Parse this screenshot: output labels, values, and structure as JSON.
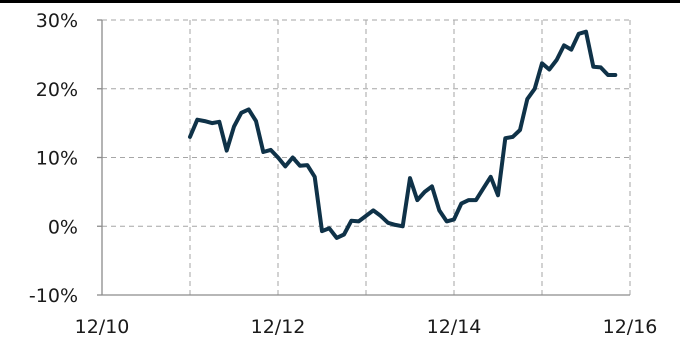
{
  "chart_data": {
    "type": "line",
    "title": "",
    "xlabel": "",
    "ylabel": "",
    "y_ticks": [
      "-10%",
      "0%",
      "10%",
      "20%",
      "30%"
    ],
    "y_tick_values": [
      -10,
      0,
      10,
      20,
      30
    ],
    "x_ticks": [
      "12/10",
      "12/12",
      "12/14",
      "12/16"
    ],
    "x_tick_values": [
      "2010-12",
      "2012-12",
      "2014-12",
      "2016-12"
    ],
    "ylim": [
      -10,
      30
    ],
    "xlim": [
      "2010-12",
      "2016-12"
    ],
    "grid": true,
    "line_color": "#0f3248",
    "series": [
      {
        "x": [
          "2011-12",
          "2012-01",
          "2012-02",
          "2012-03",
          "2012-04",
          "2012-05",
          "2012-06",
          "2012-07",
          "2012-08",
          "2012-09",
          "2012-10",
          "2012-11",
          "2012-12",
          "2013-01",
          "2013-02",
          "2013-03",
          "2013-04",
          "2013-05",
          "2013-06",
          "2013-07",
          "2013-08",
          "2013-09",
          "2013-10",
          "2013-11",
          "2013-12",
          "2014-01",
          "2014-02",
          "2014-03",
          "2014-04",
          "2014-05",
          "2014-06",
          "2014-07",
          "2014-08",
          "2014-09",
          "2014-10",
          "2014-11",
          "2014-12",
          "2015-01",
          "2015-02",
          "2015-03",
          "2015-04",
          "2015-05",
          "2015-06",
          "2015-07",
          "2015-08",
          "2015-09",
          "2015-10",
          "2015-11",
          "2015-12",
          "2016-01",
          "2016-02",
          "2016-03",
          "2016-04",
          "2016-05",
          "2016-06",
          "2016-07",
          "2016-08",
          "2016-09",
          "2016-10"
        ],
        "values": [
          13,
          15.5,
          15.3,
          15,
          15.2,
          11,
          14.5,
          16.5,
          17,
          15.3,
          10.8,
          11.1,
          10,
          8.7,
          10,
          8.8,
          8.9,
          7.2,
          -0.7,
          -0.3,
          -1.7,
          -1.2,
          0.8,
          0.7,
          1.5,
          2.3,
          1.5,
          0.5,
          0.2,
          0,
          7,
          3.8,
          5,
          5.8,
          2.3,
          0.7,
          1,
          3.3,
          3.8,
          3.8,
          5.5,
          7.2,
          4.5,
          12.8,
          13,
          14,
          18.5,
          20,
          23.7,
          22.8,
          24.2,
          26.3,
          25.7,
          28,
          28.3,
          23.2,
          23.1,
          22,
          22
        ]
      }
    ]
  }
}
